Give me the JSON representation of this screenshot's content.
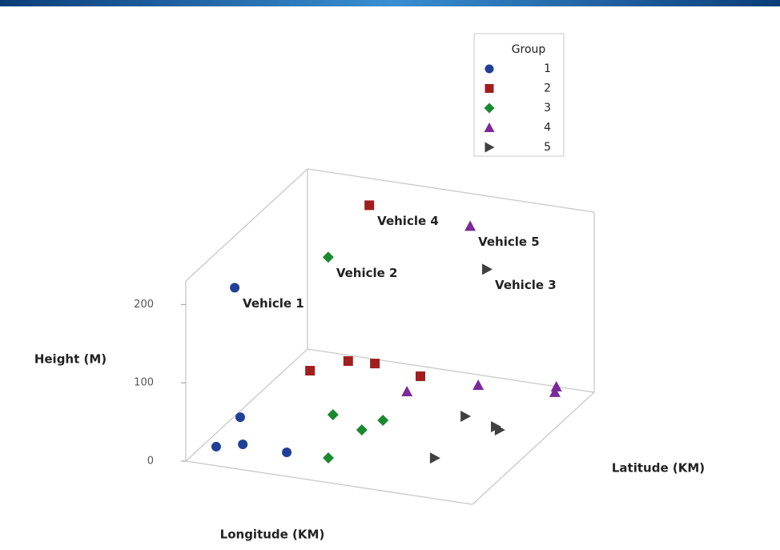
{
  "chart_data": {
    "type": "scatter3d",
    "xlabel": "Longitude (KM)",
    "ylabel": "Latitude (KM)",
    "zlabel": "Height (M)",
    "zlim": [
      0,
      230
    ],
    "zticks": [
      0,
      100,
      200
    ],
    "legend_title": "Group",
    "legend": "top-right",
    "series": [
      {
        "name": "1",
        "color": "#1f3f99",
        "marker": "circle",
        "x": [
          0.044,
          0.116,
          0.274,
          0.02,
          0.092
        ],
        "y": [
          0.146,
          0.195,
          0.184,
          0.4,
          0.185
        ],
        "z": [
          0,
          0,
          0,
          0,
          200
        ],
        "point_labels": [
          null,
          null,
          null,
          null,
          "Vehicle 1"
        ]
      },
      {
        "name": "2",
        "color": "#a01e1e",
        "marker": "square",
        "x": [
          0.078,
          0.161,
          0.249,
          0.427,
          0.227
        ],
        "y": [
          0.837,
          0.955,
          0.967,
          0.922,
          0.973
        ],
        "z": [
          0,
          0,
          0,
          0,
          200
        ],
        "point_labels": [
          null,
          null,
          null,
          null,
          "Vehicle 4"
        ]
      },
      {
        "name": "3",
        "color": "#1a8a2e",
        "marker": "diamond",
        "x": [
          0.29,
          0.426,
          0.458,
          0.417,
          0.273
        ],
        "y": [
          0.526,
          0.443,
          0.541,
          0.189,
          0.527
        ],
        "z": [
          0,
          0,
          0,
          0,
          200
        ],
        "point_labels": [
          null,
          null,
          null,
          null,
          "Vehicle 2"
        ]
      },
      {
        "name": "4",
        "color": "#7b2a9a",
        "marker": "triangle",
        "x": [
          0.436,
          0.629,
          0.882,
          0.868,
          0.597
        ],
        "y": [
          0.79,
          0.921,
          0.955,
          1.0,
          0.93
        ],
        "z": [
          0,
          0,
          0,
          0,
          200
        ],
        "point_labels": [
          null,
          null,
          null,
          null,
          "Vehicle 5"
        ]
      },
      {
        "name": "5",
        "color": "#404040",
        "marker": "triangle-right",
        "x": [
          0.692,
          0.817,
          0.839,
          0.736,
          0.788
        ],
        "y": [
          0.667,
          0.622,
          0.602,
          0.312,
          0.618
        ],
        "z": [
          0,
          0,
          0,
          0,
          200
        ],
        "point_labels": [
          null,
          null,
          null,
          null,
          "Vehicle 3"
        ]
      }
    ]
  }
}
